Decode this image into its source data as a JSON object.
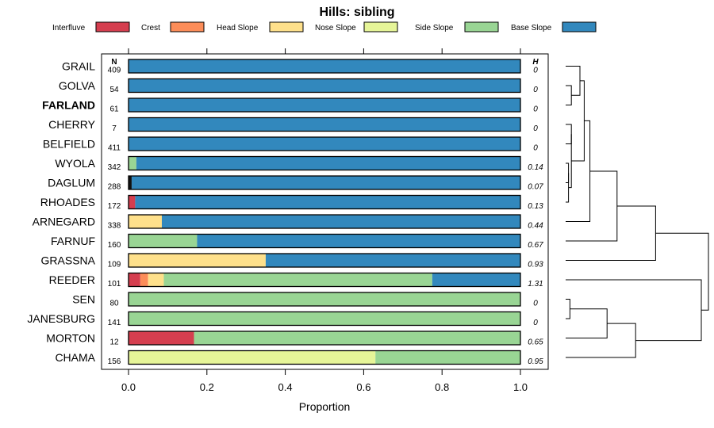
{
  "chart_data": {
    "type": "bar",
    "orientation": "horizontal",
    "stacked": true,
    "title": "Hills: sibling",
    "xlabel": "Proportion",
    "ylabel": "",
    "xlim": [
      0,
      1
    ],
    "x_ticks": [
      "0.0",
      "0.2",
      "0.4",
      "0.6",
      "0.8",
      "1.0"
    ],
    "n_header": "N",
    "h_header": "H",
    "legend": [
      "Interfluve",
      "Crest",
      "Head Slope",
      "Nose Slope",
      "Side Slope",
      "Base Slope"
    ],
    "colors": {
      "Interfluve": "#d53e4f",
      "Crest": "#fc8d59",
      "Head Slope": "#fee08b",
      "Nose Slope": "#e6f598",
      "Side Slope": "#99d594",
      "Base Slope": "#3288bd",
      "Dark": "#111111"
    },
    "categories": [
      "GRAIL",
      "GOLVA",
      "FARLAND",
      "CHERRY",
      "BELFIELD",
      "WYOLA",
      "DAGLUM",
      "RHOADES",
      "ARNEGARD",
      "FARNUF",
      "GRASSNA",
      "REEDER",
      "SEN",
      "JANESBURG",
      "MORTON",
      "CHAMA"
    ],
    "bold_category": "FARLAND",
    "n": [
      "409",
      "54",
      "61",
      "7",
      "411",
      "342",
      "288",
      "172",
      "338",
      "160",
      "109",
      "101",
      "80",
      "141",
      "12",
      "156"
    ],
    "h": [
      "0",
      "0",
      "0",
      "0",
      "0",
      "0.14",
      "0.07",
      "0.13",
      "0.44",
      "0.67",
      "0.93",
      "1.31",
      "0",
      "0",
      "0.65",
      "0.95"
    ],
    "rows": [
      {
        "segments": [
          {
            "c": "Base Slope",
            "v": 1.0
          }
        ]
      },
      {
        "segments": [
          {
            "c": "Base Slope",
            "v": 1.0
          }
        ]
      },
      {
        "segments": [
          {
            "c": "Base Slope",
            "v": 1.0
          }
        ]
      },
      {
        "segments": [
          {
            "c": "Base Slope",
            "v": 1.0
          }
        ]
      },
      {
        "segments": [
          {
            "c": "Base Slope",
            "v": 1.0
          }
        ]
      },
      {
        "segments": [
          {
            "c": "Side Slope",
            "v": 0.02
          },
          {
            "c": "Base Slope",
            "v": 0.98
          }
        ]
      },
      {
        "segments": [
          {
            "c": "Dark",
            "v": 0.008
          },
          {
            "c": "Base Slope",
            "v": 0.992
          }
        ]
      },
      {
        "segments": [
          {
            "c": "Interfluve",
            "v": 0.017
          },
          {
            "c": "Base Slope",
            "v": 0.983
          }
        ]
      },
      {
        "segments": [
          {
            "c": "Head Slope",
            "v": 0.085
          },
          {
            "c": "Base Slope",
            "v": 0.915
          }
        ]
      },
      {
        "segments": [
          {
            "c": "Side Slope",
            "v": 0.175
          },
          {
            "c": "Base Slope",
            "v": 0.825
          }
        ]
      },
      {
        "segments": [
          {
            "c": "Head Slope",
            "v": 0.35
          },
          {
            "c": "Base Slope",
            "v": 0.65
          }
        ]
      },
      {
        "segments": [
          {
            "c": "Interfluve",
            "v": 0.03
          },
          {
            "c": "Crest",
            "v": 0.02
          },
          {
            "c": "Head Slope",
            "v": 0.04
          },
          {
            "c": "Side Slope",
            "v": 0.685
          },
          {
            "c": "Base Slope",
            "v": 0.225
          }
        ]
      },
      {
        "segments": [
          {
            "c": "Side Slope",
            "v": 1.0
          }
        ]
      },
      {
        "segments": [
          {
            "c": "Side Slope",
            "v": 1.0
          }
        ]
      },
      {
        "segments": [
          {
            "c": "Interfluve",
            "v": 0.167
          },
          {
            "c": "Side Slope",
            "v": 0.833
          }
        ]
      },
      {
        "segments": [
          {
            "c": "Nose Slope",
            "v": 0.63
          },
          {
            "c": "Side Slope",
            "v": 0.37
          }
        ]
      }
    ],
    "dendrogram": {
      "type": "hierarchical clustering",
      "leaf_order": [
        "GRAIL",
        "GOLVA",
        "FARLAND",
        "CHERRY",
        "BELFIELD",
        "WYOLA",
        "DAGLUM",
        "RHOADES",
        "ARNEGARD",
        "FARNUF",
        "GRASSNA",
        "REEDER",
        "SEN",
        "JANESBURG",
        "MORTON",
        "CHAMA"
      ],
      "merges": [
        {
          "a": "GOLVA",
          "b": "FARLAND",
          "h": 0.04
        },
        {
          "a": "GOLVA+FARLAND",
          "b": "GRAIL",
          "h": 0.1
        },
        {
          "a": "CHERRY",
          "b": "BELFIELD",
          "h": 0.04
        },
        {
          "a": "WYOLA",
          "b": "DAGLUM",
          "h": 0.02
        },
        {
          "a": "WYOLA+DAGLUM",
          "b": "RHOADES",
          "h": 0.02
        },
        {
          "a": "CHERRY+BELFIELD",
          "b": "WYOLA+DAGLUM+RHOADES",
          "h": 0.04
        },
        {
          "a": "GRAIL+GOLVA+FARLAND",
          "b": "CHERRY+BELFIELD+WYOLA+DAGLUM+RHOADES",
          "h": 0.13
        },
        {
          "a": "GRAIL..RHOADES",
          "b": "ARNEGARD",
          "h": 0.17
        },
        {
          "a": "GRAIL..ARNEGARD",
          "b": "FARNUF",
          "h": 0.36
        },
        {
          "a": "GRAIL..FARNUF",
          "b": "GRASSNA",
          "h": 0.63
        },
        {
          "a": "SEN",
          "b": "JANESBURG",
          "h": 0.03
        },
        {
          "a": "SEN+JANESBURG",
          "b": "MORTON",
          "h": 0.29
        },
        {
          "a": "SEN+JANESBURG+MORTON",
          "b": "CHAMA",
          "h": 0.49
        },
        {
          "a": "REEDER",
          "b": "SEN+JANESBURG+MORTON+CHAMA",
          "h": 0.95
        },
        {
          "a": "GRAIL..GRASSNA",
          "b": "REEDER..CHAMA",
          "h": 1.0
        }
      ]
    }
  }
}
